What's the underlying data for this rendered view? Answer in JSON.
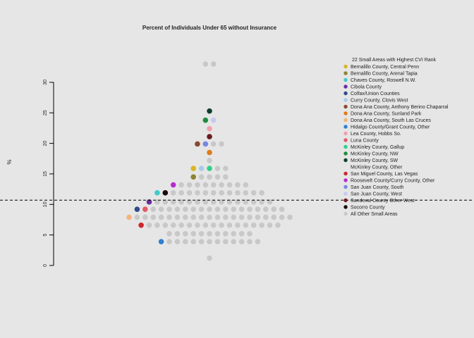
{
  "chart_data": {
    "type": "scatter",
    "title": "Percent of Individuals Under 65 without Insurance",
    "xlabel": "",
    "ylabel": "%",
    "ylim": [
      0,
      33
    ],
    "yticks": [
      0,
      5,
      10,
      15,
      20,
      25,
      30
    ],
    "reference_line": {
      "y": 10.7,
      "style": "dashed"
    },
    "legend": {
      "title": "22 Small Areas with Highest CVI Rank",
      "placement": "right"
    },
    "series": [
      {
        "name": "Bernalillo County, Central Penn",
        "color": "#d9b526",
        "y": 15.9
      },
      {
        "name": "Bernalillo County, Arenal Tapia",
        "color": "#8d8530",
        "y": 14.5
      },
      {
        "name": "Chaves County, Roswell N.W.",
        "color": "#3ecbc8",
        "y": 11.9
      },
      {
        "name": "Cibola County",
        "color": "#6a2ea0",
        "y": 10.4
      },
      {
        "name": "Colfax/Union Counties",
        "color": "#2e4b8a",
        "y": 9.2
      },
      {
        "name": "Curry County, Clovis West",
        "color": "#a8ccea",
        "y": 15.9
      },
      {
        "name": "Dona Ana County, Anthony Berino Chaparral",
        "color": "#8a4a2e",
        "y": 19.9
      },
      {
        "name": "Dona Ana County, Sunland Park",
        "color": "#e07a1c",
        "y": 18.5
      },
      {
        "name": "Dona Ana County, South Las Cruces",
        "color": "#f4b47a",
        "y": 7.9
      },
      {
        "name": "Hidalgo County/Grant County, Other",
        "color": "#2f7fd0",
        "y": 3.9
      },
      {
        "name": "Lea County, Hobbs So.",
        "color": "#f0a0b0",
        "y": 22.4
      },
      {
        "name": "Luna County",
        "color": "#e05a6a",
        "y": 9.2
      },
      {
        "name": "McKinley County, Gallup",
        "color": "#2ed08a",
        "y": 15.9
      },
      {
        "name": "McKinley County, NW",
        "color": "#1f8a3e",
        "y": 23.8
      },
      {
        "name": "McKinley County, SW",
        "color": "#0f3d2a",
        "y": 25.3
      },
      {
        "name": "McKinley County, Other",
        "color": "#e6e6e6",
        "y": 26.5
      },
      {
        "name": "San Miguel County, Las Vegas",
        "color": "#d0262e",
        "y": 6.6
      },
      {
        "name": "Roosevelt County/Curry County, Other",
        "color": "#b62ed0",
        "y": 13.2
      },
      {
        "name": "San Juan County, South",
        "color": "#7a86e0",
        "y": 19.9
      },
      {
        "name": "San Juan County, West",
        "color": "#c8c8ee",
        "y": 23.8
      },
      {
        "name": "Sandoval County Other West",
        "color": "#6a1a20",
        "y": 21.1
      },
      {
        "name": "Socorro County",
        "color": "#1a0a0a",
        "y": 11.9
      },
      {
        "name": "All Other Small Areas",
        "color": "#c8c8c8",
        "y": null
      }
    ],
    "other_areas": {
      "name": "All Other Small Areas",
      "color": "#c8c8c8",
      "rows": [
        {
          "y": 33.0,
          "count": 2
        },
        {
          "y": 19.9,
          "count": 2
        },
        {
          "y": 17.2,
          "count": 1
        },
        {
          "y": 15.9,
          "count": 2
        },
        {
          "y": 14.5,
          "count": 4
        },
        {
          "y": 13.2,
          "count": 9
        },
        {
          "y": 11.9,
          "count": 12
        },
        {
          "y": 10.4,
          "count": 15
        },
        {
          "y": 9.2,
          "count": 17
        },
        {
          "y": 7.9,
          "count": 20
        },
        {
          "y": 6.6,
          "count": 17
        },
        {
          "y": 5.2,
          "count": 11
        },
        {
          "y": 3.9,
          "count": 12
        },
        {
          "y": 1.2,
          "count": 1
        }
      ]
    }
  }
}
